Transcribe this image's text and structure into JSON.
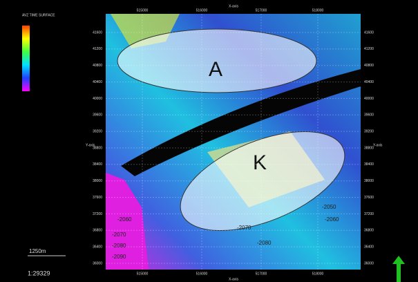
{
  "legend": {
    "title": "AVZ TIME SURFACE"
  },
  "axes": {
    "x_label_top": "X-axis",
    "x_label_bottom": "X-axis",
    "y_label_left": "Y-axis",
    "y_label_right": "Y-axis",
    "x_ticks": [
      "515000",
      "516000",
      "517000",
      "518000"
    ],
    "y_ticks": [
      "41600",
      "41200",
      "40800",
      "40400",
      "40000",
      "39600",
      "39200",
      "38800",
      "38400",
      "38000",
      "37600",
      "37200",
      "36800",
      "36400",
      "36000"
    ]
  },
  "zones": [
    "A",
    "K"
  ],
  "contours": [
    "-2060",
    "-2070",
    "-2080",
    "-2090",
    "-2050",
    "-2070",
    "-2060",
    "-2080"
  ],
  "scale_bar": {
    "length": "1250m",
    "ratio": "1:29329"
  }
}
